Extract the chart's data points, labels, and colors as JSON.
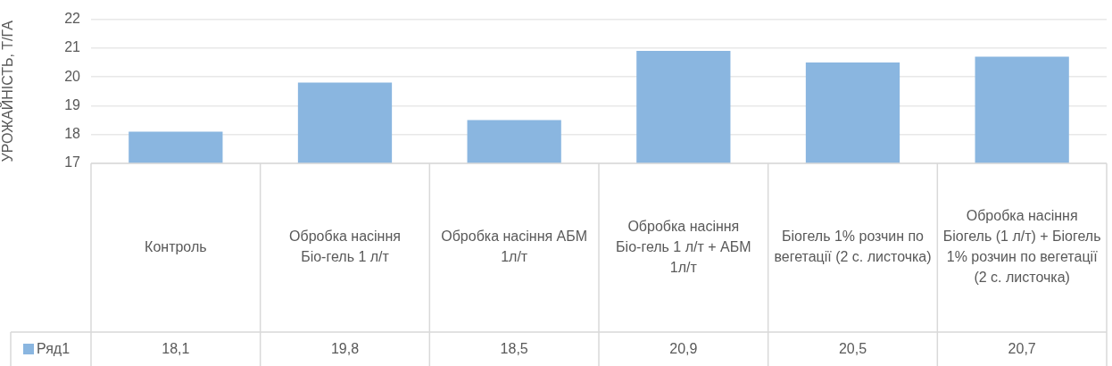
{
  "chart_data": {
    "type": "bar",
    "ylabel": "УРОЖАЙНІСТЬ, Т/ГА",
    "categories": [
      "Контроль",
      "Обробка насіння Біо-гель 1 л/т",
      "Обробка насіння АБМ 1л/т",
      "Обробка насіння Біо-гель 1 л/т + АБМ 1л/т",
      "Біогель 1% розчин по вегетації (2 с. листочка)",
      "Обробка насіння Біогель (1 л/т) + Біогель 1% розчин по вегетації (2 с. листочка)"
    ],
    "series": [
      {
        "name": "Ряд1",
        "color": "#8ab6e0",
        "values": [
          18.1,
          19.8,
          18.5,
          20.9,
          20.5,
          20.7
        ],
        "value_labels": [
          "18,1",
          "19,8",
          "18,5",
          "20,9",
          "20,5",
          "20,7"
        ]
      }
    ],
    "ylim": [
      17,
      22
    ],
    "yticks": [
      17,
      18,
      19,
      20,
      21,
      22
    ],
    "grid": "y",
    "legend": "bottom"
  }
}
